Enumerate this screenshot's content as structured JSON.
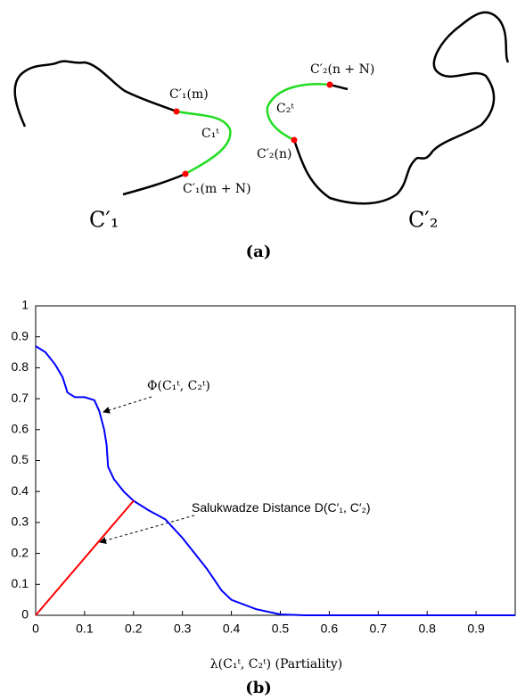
{
  "panel_a": {
    "label": "(a)",
    "c1_m": "C′₁(m)",
    "c1_t": "C₁ᵗ",
    "c1_mN": "C′₁(m + N)",
    "c1_name": "C′₁",
    "c2_nN": "C′₂(n + N)",
    "c2_t": "C₂ᵗ",
    "c2_n": "C′₂(n)",
    "c2_name": "C′₂"
  },
  "chart_data": {
    "type": "line",
    "label": "(b)",
    "x_label": "λ(C₁ᵗ, C₂ᵗ) (Partiality)",
    "annotations": [
      "Φ(C₁ᵗ, C₂ᵗ)",
      "Salukwadze Distance D(C′₁, C′₂)"
    ],
    "xlim": [
      0,
      0.98
    ],
    "ylim": [
      0,
      1
    ],
    "xticks": [
      0,
      0.1,
      0.2,
      0.3,
      0.4,
      0.5,
      0.6,
      0.7,
      0.8,
      0.9
    ],
    "yticks": [
      0,
      0.1,
      0.2,
      0.3,
      0.4,
      0.5,
      0.6,
      0.7,
      0.8,
      0.9,
      1
    ],
    "series": [
      {
        "color": "#0000ff",
        "x": [
          0,
          0.02,
          0.04,
          0.055,
          0.065,
          0.08,
          0.1,
          0.12,
          0.13,
          0.14,
          0.145,
          0.148,
          0.16,
          0.18,
          0.2,
          0.23,
          0.265,
          0.3,
          0.35,
          0.38,
          0.4,
          0.45,
          0.5,
          0.55,
          0.98
        ],
        "values": [
          0.87,
          0.85,
          0.81,
          0.77,
          0.72,
          0.705,
          0.705,
          0.695,
          0.66,
          0.6,
          0.55,
          0.48,
          0.44,
          0.4,
          0.37,
          0.34,
          0.31,
          0.25,
          0.15,
          0.08,
          0.05,
          0.02,
          0.003,
          0,
          0
        ]
      },
      {
        "color": "#ff0000",
        "x": [
          0,
          0.2
        ],
        "values": [
          0,
          0.37
        ]
      }
    ]
  }
}
